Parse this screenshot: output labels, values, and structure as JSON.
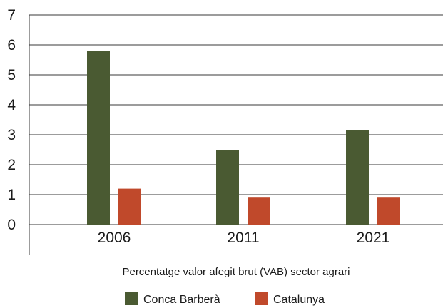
{
  "chart_data": {
    "type": "bar",
    "title": "",
    "xlabel": "Percentatge valor afegit brut (VAB) sector agrari",
    "ylabel": "",
    "categories": [
      "2006",
      "2011",
      "2021"
    ],
    "yticks": [
      "0",
      "1",
      "2",
      "3",
      "4",
      "5",
      "6",
      "7"
    ],
    "ylim": [
      0,
      7
    ],
    "grid": true,
    "legend_position": "bottom",
    "series": [
      {
        "name": "Conca Barberà",
        "color": "#4a5a32",
        "values": [
          5.8,
          2.5,
          3.15
        ]
      },
      {
        "name": "Catalunya",
        "color": "#c0492b",
        "values": [
          1.2,
          0.9,
          0.9
        ]
      }
    ]
  }
}
